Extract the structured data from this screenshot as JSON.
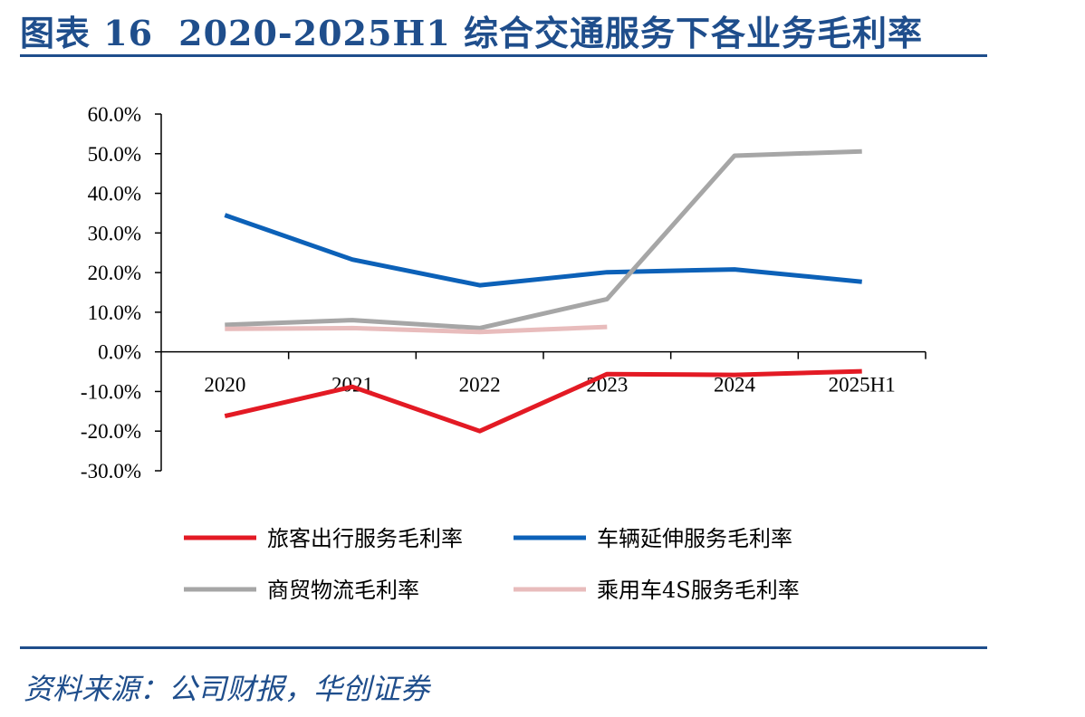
{
  "header": {
    "label": "图表 16",
    "title": "2020-2025H1 综合交通服务下各业务毛利率"
  },
  "footer": {
    "source": "资料来源：公司财报，华创证券"
  },
  "chart_data": {
    "type": "line",
    "title": "",
    "xlabel": "",
    "ylabel": "",
    "categories": [
      "2020",
      "2021",
      "2022",
      "2023",
      "2024",
      "2025H1"
    ],
    "ylim": [
      -30,
      60
    ],
    "yticks": [
      60,
      50,
      40,
      30,
      20,
      10,
      0,
      -10,
      -20,
      -30
    ],
    "ytick_labels": [
      "60.0%",
      "50.0%",
      "40.0%",
      "30.0%",
      "20.0%",
      "10.0%",
      "0.0%",
      "-10.0%",
      "-20.0%",
      "-30.0%"
    ],
    "grid": false,
    "legend_position": "bottom",
    "series": [
      {
        "name": "旅客出行服务毛利率",
        "color": "#e31a24",
        "values": [
          -16.2,
          -8.8,
          -20.0,
          -5.6,
          -5.8,
          -4.9
        ]
      },
      {
        "name": "车辆延伸服务毛利率",
        "color": "#0c61b8",
        "values": [
          34.5,
          23.3,
          16.8,
          20.1,
          20.8,
          17.7
        ]
      },
      {
        "name": "商贸物流毛利率",
        "color": "#a6a6a6",
        "values": [
          6.8,
          8.0,
          6.0,
          13.3,
          49.5,
          50.6
        ]
      },
      {
        "name": "乘用车4S服务毛利率",
        "color": "#e8bcbc",
        "values": [
          5.8,
          6.0,
          5.0,
          6.3,
          null,
          null
        ]
      }
    ]
  }
}
